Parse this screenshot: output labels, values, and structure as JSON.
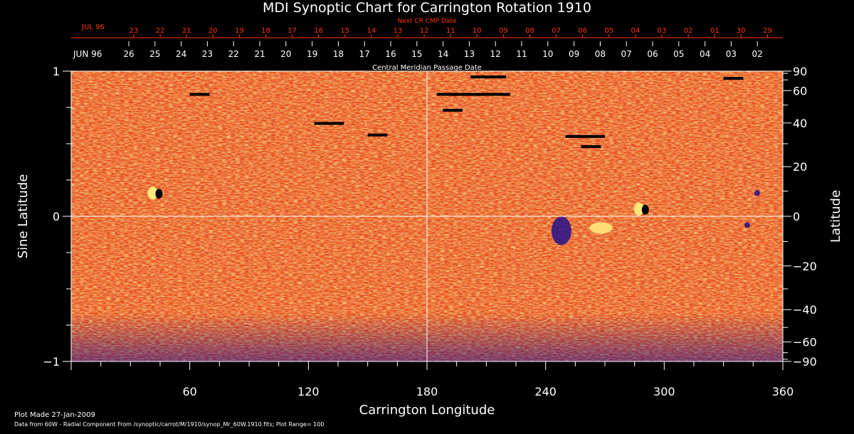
{
  "chart_data": {
    "type": "heatmap",
    "title": "MDI Synoptic Chart for Carrington Rotation 1910",
    "xlabel": "Carrington Longitude",
    "ylabel_left": "Sine Latitude",
    "ylabel_right": "Latitude",
    "xlim": [
      0,
      360
    ],
    "ylim": [
      -1,
      1
    ],
    "x_ticks": [
      60,
      120,
      180,
      240,
      300,
      360
    ],
    "y_ticks_left": [
      -1,
      0,
      1
    ],
    "y_tick_labels_left": [
      "−1",
      "0",
      "1"
    ],
    "y_ticks_right": [
      90,
      60,
      40,
      20,
      0,
      -20,
      -40,
      -60,
      -90
    ],
    "y_tick_labels_right": [
      "90",
      "60",
      "40",
      "20",
      "0",
      "−20",
      "−40",
      "−60",
      "−90"
    ],
    "top_axis_next": {
      "caption": "Next CR CMP Date",
      "month_label": "JUL 96",
      "day_labels": [
        "23",
        "22",
        "21",
        "20",
        "19",
        "18",
        "17",
        "16",
        "15",
        "14",
        "13",
        "12",
        "11",
        "10",
        "09",
        "08",
        "07",
        "06",
        "05",
        "04",
        "03",
        "02",
        "01",
        "30",
        "29"
      ],
      "color": "#ff3300"
    },
    "top_axis_cmp": {
      "caption": "Central Meridian Passage Date",
      "month_label": "JUN 96",
      "day_labels": [
        "26",
        "25",
        "24",
        "23",
        "22",
        "21",
        "20",
        "19",
        "18",
        "17",
        "16",
        "15",
        "14",
        "13",
        "12",
        "11",
        "10",
        "09",
        "08",
        "07",
        "06",
        "05",
        "04",
        "03",
        "02"
      ],
      "color": "#ffffff"
    },
    "grid_lines": {
      "longitude": 180,
      "sine_latitude": 0
    },
    "features": [
      {
        "name": "sunspot",
        "lon": 43,
        "sinlat": 0.16,
        "polarity": "bipolar"
      },
      {
        "name": "active region",
        "lon": 248,
        "sinlat": -0.1,
        "polarity": "negative"
      },
      {
        "name": "active region",
        "lon": 268,
        "sinlat": -0.08,
        "polarity": "positive"
      },
      {
        "name": "sunspot",
        "lon": 289,
        "sinlat": 0.05,
        "polarity": "bipolar"
      },
      {
        "name": "sunspot",
        "lon": 342,
        "sinlat": -0.06,
        "polarity": "negative"
      },
      {
        "name": "sunspot",
        "lon": 347,
        "sinlat": 0.16,
        "polarity": "negative"
      }
    ],
    "gaps": [
      {
        "lon_start": 202,
        "lon_end": 220,
        "sinlat": 0.96
      },
      {
        "lon_start": 330,
        "lon_end": 340,
        "sinlat": 0.95
      },
      {
        "lon_start": 185,
        "lon_end": 222,
        "sinlat": 0.84
      },
      {
        "lon_start": 188,
        "lon_end": 198,
        "sinlat": 0.73
      },
      {
        "lon_start": 60,
        "lon_end": 70,
        "sinlat": 0.84
      },
      {
        "lon_start": 123,
        "lon_end": 138,
        "sinlat": 0.64
      },
      {
        "lon_start": 150,
        "lon_end": 160,
        "sinlat": 0.56
      },
      {
        "lon_start": 250,
        "lon_end": 270,
        "sinlat": 0.55
      },
      {
        "lon_start": 258,
        "lon_end": 268,
        "sinlat": 0.48
      }
    ],
    "colors": {
      "background": "#000000",
      "field_base": "#e8501c",
      "positive": "#ffe87a",
      "negative": "#23108a",
      "text": "#ffffff",
      "accent": "#ff3300"
    }
  },
  "footer": {
    "plot_made": "Plot Made 27-Jan-2009",
    "data_source": "Data from 60W - Radial Component From /synoptic/carrot/M/1910/synop_Mr_60W.1910.fits; Plot Range=  100"
  }
}
